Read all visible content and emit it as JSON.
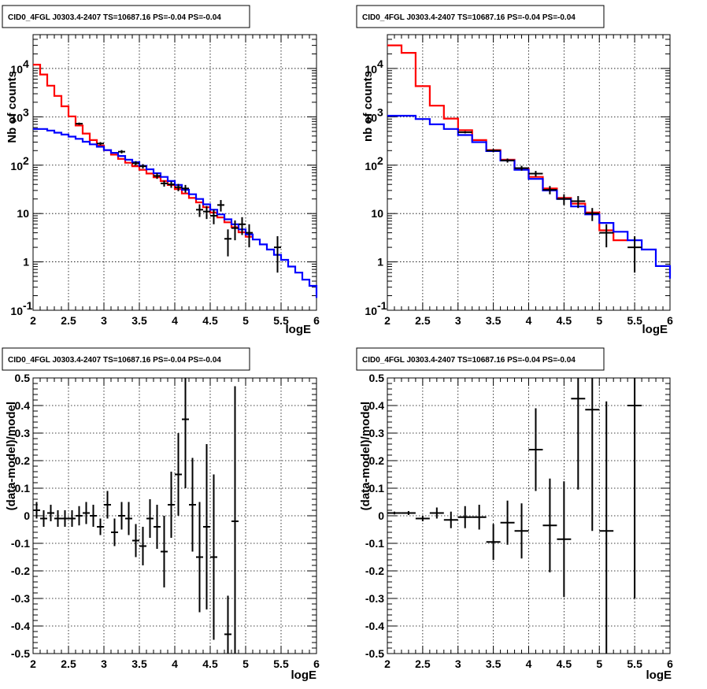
{
  "chart_data": [
    {
      "id": "p1",
      "type": "step-histogram",
      "title": "CID0_4FGL J0303.4-2407 TS=10687.16 PS=-0.04 PS=-0.04",
      "xlabel": "logE",
      "ylabel": "Nb of counts",
      "xlim": [
        2,
        6
      ],
      "ylim": [
        0.1,
        50000
      ],
      "yscale": "log",
      "grid": true,
      "x_ticks": [
        "2",
        "2.5",
        "3",
        "3.5",
        "4",
        "4.5",
        "5",
        "5.5",
        "6"
      ],
      "y_ticks_major": [
        "10^-1",
        "1",
        "10",
        "10^2",
        "10^3",
        "10^4"
      ],
      "bin_edges": [
        2.0,
        2.1,
        2.2,
        2.3,
        2.4,
        2.5,
        2.6,
        2.7,
        2.8,
        2.9,
        3.0,
        3.1,
        3.2,
        3.3,
        3.4,
        3.5,
        3.6,
        3.7,
        3.8,
        3.9,
        4.0,
        4.1,
        4.2,
        4.3,
        4.4,
        4.5,
        4.6,
        4.7,
        4.8,
        4.9,
        5.0,
        5.1,
        5.2,
        5.3,
        5.4,
        5.5,
        5.6,
        5.7,
        5.8,
        5.9,
        6.0
      ],
      "series": [
        {
          "color": "#ff0000",
          "values": [
            12000,
            7500,
            4400,
            2700,
            1650,
            1020,
            660,
            450,
            330,
            255,
            205,
            165,
            135,
            112,
            95,
            80,
            67,
            56,
            47,
            39,
            32,
            26,
            21,
            17,
            13.5,
            10.5,
            8.3,
            6.6,
            5.2,
            4.1,
            3.3
          ]
        },
        {
          "color": "#0000ff",
          "values": [
            560,
            560,
            520,
            470,
            430,
            390,
            350,
            305,
            270,
            240,
            205,
            180,
            155,
            130,
            115,
            97,
            82,
            68,
            57,
            47,
            39,
            31,
            25,
            20,
            15.5,
            12,
            9.6,
            7.6,
            6,
            4.7,
            3.7,
            2.9,
            2.3,
            1.8,
            1.4,
            1.1,
            0.8,
            0.6,
            0.43,
            0.32,
            0.18
          ]
        }
      ],
      "points": [
        {
          "x": 2.65,
          "y": 720,
          "lo": 680,
          "hi": 760
        },
        {
          "x": 2.95,
          "y": 280,
          "lo": 260,
          "hi": 300
        },
        {
          "x": 3.25,
          "y": 190,
          "lo": 175,
          "hi": 205
        },
        {
          "x": 3.45,
          "y": 110,
          "lo": 99,
          "hi": 121
        },
        {
          "x": 3.55,
          "y": 95,
          "lo": 85,
          "hi": 105
        },
        {
          "x": 3.75,
          "y": 60,
          "lo": 52,
          "hi": 68
        },
        {
          "x": 3.85,
          "y": 42,
          "lo": 36,
          "hi": 48
        },
        {
          "x": 3.95,
          "y": 40,
          "lo": 34,
          "hi": 46
        },
        {
          "x": 4.05,
          "y": 35,
          "lo": 29,
          "hi": 41
        },
        {
          "x": 4.15,
          "y": 33,
          "lo": 27,
          "hi": 39
        },
        {
          "x": 4.35,
          "y": 12,
          "lo": 8.5,
          "hi": 15.5
        },
        {
          "x": 4.45,
          "y": 11,
          "lo": 7.7,
          "hi": 14.3
        },
        {
          "x": 4.55,
          "y": 9,
          "lo": 6,
          "hi": 12
        },
        {
          "x": 4.65,
          "y": 15,
          "lo": 11,
          "hi": 19
        },
        {
          "x": 4.75,
          "y": 3,
          "lo": 1.3,
          "hi": 4.7
        },
        {
          "x": 4.85,
          "y": 5,
          "lo": 2.8,
          "hi": 7.2
        },
        {
          "x": 4.95,
          "y": 6,
          "lo": 3.6,
          "hi": 8.4
        },
        {
          "x": 5.05,
          "y": 4,
          "lo": 2,
          "hi": 6
        },
        {
          "x": 5.45,
          "y": 2,
          "lo": 0.6,
          "hi": 3.4
        }
      ],
      "xerr": 0.05
    },
    {
      "id": "p2",
      "type": "step-histogram",
      "title": "CID0_4FGL J0303.4-2407 TS=10687.16 PS=-0.04 PS=-0.04",
      "xlabel": "logE",
      "ylabel": "nb of counts",
      "xlim": [
        2,
        6
      ],
      "ylim": [
        0.1,
        50000
      ],
      "yscale": "log",
      "grid": true,
      "x_ticks": [
        "2",
        "2.5",
        "3",
        "3.5",
        "4",
        "4.5",
        "5",
        "5.5",
        "6"
      ],
      "y_ticks_major": [
        "10^-1",
        "1",
        "10",
        "10^2",
        "10^3",
        "10^4"
      ],
      "bin_edges": [
        2.0,
        2.2,
        2.4,
        2.6,
        2.8,
        3.0,
        3.2,
        3.4,
        3.6,
        3.8,
        4.0,
        4.2,
        4.4,
        4.6,
        4.8,
        5.0,
        5.2,
        5.4,
        5.6,
        5.8,
        6.0
      ],
      "series": [
        {
          "color": "#ff0000",
          "values": [
            30000,
            21000,
            4300,
            1700,
            920,
            530,
            330,
            205,
            130,
            85,
            57,
            33,
            21,
            16,
            10.5,
            4.5,
            2.8
          ]
        },
        {
          "color": "#0000ff",
          "values": [
            1050,
            1050,
            900,
            700,
            560,
            420,
            300,
            195,
            125,
            80,
            52,
            30,
            20,
            14,
            9.6,
            6.4,
            4.2,
            2.8,
            1.8,
            0.82,
            0.45
          ]
        }
      ],
      "points": [
        {
          "x": 3.1,
          "y": 480,
          "lo": 455,
          "hi": 505
        },
        {
          "x": 3.5,
          "y": 200,
          "lo": 185,
          "hi": 215
        },
        {
          "x": 3.7,
          "y": 125,
          "lo": 113,
          "hi": 137
        },
        {
          "x": 3.9,
          "y": 87,
          "lo": 77,
          "hi": 97
        },
        {
          "x": 4.1,
          "y": 67,
          "lo": 58,
          "hi": 76
        },
        {
          "x": 4.3,
          "y": 31,
          "lo": 25,
          "hi": 37
        },
        {
          "x": 4.5,
          "y": 20,
          "lo": 15,
          "hi": 25
        },
        {
          "x": 4.7,
          "y": 18,
          "lo": 13,
          "hi": 23
        },
        {
          "x": 4.9,
          "y": 10,
          "lo": 7,
          "hi": 13
        },
        {
          "x": 5.1,
          "y": 4,
          "lo": 2,
          "hi": 6
        },
        {
          "x": 5.5,
          "y": 2,
          "lo": 0.6,
          "hi": 3.4
        }
      ],
      "xerr": 0.1
    },
    {
      "id": "p3",
      "type": "scatter",
      "title": "CID0_4FGL J0303.4-2407 TS=10687.16 PS=-0.04 PS=-0.04",
      "xlabel": "logE",
      "ylabel": "(data-model)/model",
      "xlim": [
        2,
        6
      ],
      "ylim": [
        -0.5,
        0.5
      ],
      "yscale": "linear",
      "grid": true,
      "x_ticks": [
        "2",
        "2.5",
        "3",
        "3.5",
        "4",
        "4.5",
        "5",
        "5.5",
        "6"
      ],
      "y_ticks": [
        "-0.5",
        "-0.4",
        "-0.3",
        "-0.2",
        "-0.1",
        "0",
        "0.1",
        "0.2",
        "0.3",
        "0.4",
        "0.5"
      ],
      "xerr": 0.05,
      "points": [
        {
          "x": 2.05,
          "y": 0.02,
          "err": 0.03
        },
        {
          "x": 2.15,
          "y": -0.01,
          "err": 0.03
        },
        {
          "x": 2.25,
          "y": 0.01,
          "err": 0.03
        },
        {
          "x": 2.35,
          "y": -0.01,
          "err": 0.03
        },
        {
          "x": 2.45,
          "y": -0.01,
          "err": 0.03
        },
        {
          "x": 2.55,
          "y": -0.01,
          "err": 0.03
        },
        {
          "x": 2.65,
          "y": 0.0,
          "err": 0.035
        },
        {
          "x": 2.75,
          "y": 0.01,
          "err": 0.04
        },
        {
          "x": 2.85,
          "y": 0.0,
          "err": 0.04
        },
        {
          "x": 2.95,
          "y": -0.04,
          "err": 0.03
        },
        {
          "x": 3.05,
          "y": 0.04,
          "err": 0.05
        },
        {
          "x": 3.15,
          "y": -0.06,
          "err": 0.05
        },
        {
          "x": 3.25,
          "y": 0.0,
          "err": 0.05
        },
        {
          "x": 3.35,
          "y": -0.01,
          "err": 0.06
        },
        {
          "x": 3.45,
          "y": -0.09,
          "err": 0.06
        },
        {
          "x": 3.55,
          "y": -0.11,
          "err": 0.07
        },
        {
          "x": 3.65,
          "y": -0.01,
          "err": 0.07
        },
        {
          "x": 3.75,
          "y": -0.04,
          "err": 0.08
        },
        {
          "x": 3.85,
          "y": -0.13,
          "err": 0.13
        },
        {
          "x": 3.95,
          "y": 0.04,
          "err": 0.12
        },
        {
          "x": 4.05,
          "y": 0.15,
          "err": 0.15
        },
        {
          "x": 4.15,
          "y": 0.35,
          "err": 0.25
        },
        {
          "x": 4.25,
          "y": 0.04,
          "err": 0.17
        },
        {
          "x": 4.35,
          "y": -0.15,
          "err": 0.2
        },
        {
          "x": 4.45,
          "y": -0.04,
          "err": 0.3
        },
        {
          "x": 4.55,
          "y": -0.15,
          "err": 0.3
        },
        {
          "x": 4.75,
          "y": -0.43,
          "err": 0.14
        },
        {
          "x": 4.85,
          "y": -0.02,
          "err": 0.49
        }
      ]
    },
    {
      "id": "p4",
      "type": "scatter",
      "title": "CID0_4FGL J0303.4-2407 TS=10687.16 PS=-0.04 PS=-0.04",
      "xlabel": "logE",
      "ylabel": "(data-model)/model",
      "xlim": [
        2,
        6
      ],
      "ylim": [
        -0.5,
        0.5
      ],
      "yscale": "linear",
      "grid": true,
      "x_ticks": [
        "2",
        "2.5",
        "3",
        "3.5",
        "4",
        "4.5",
        "5",
        "5.5",
        "6"
      ],
      "y_ticks": [
        "-0.5",
        "-0.4",
        "-0.3",
        "-0.2",
        "-0.1",
        "0",
        "0.1",
        "0.2",
        "0.3",
        "0.4",
        "0.5"
      ],
      "xerr": 0.1,
      "points": [
        {
          "x": 2.1,
          "y": 0.01,
          "err": 0.005
        },
        {
          "x": 2.3,
          "y": 0.01,
          "err": 0.007
        },
        {
          "x": 2.5,
          "y": -0.01,
          "err": 0.01
        },
        {
          "x": 2.7,
          "y": 0.01,
          "err": 0.02
        },
        {
          "x": 2.9,
          "y": -0.015,
          "err": 0.03
        },
        {
          "x": 3.1,
          "y": -0.005,
          "err": 0.04
        },
        {
          "x": 3.3,
          "y": -0.005,
          "err": 0.045
        },
        {
          "x": 3.5,
          "y": -0.095,
          "err": 0.065
        },
        {
          "x": 3.7,
          "y": -0.025,
          "err": 0.08
        },
        {
          "x": 3.9,
          "y": -0.055,
          "err": 0.1
        },
        {
          "x": 4.1,
          "y": 0.24,
          "err": 0.15
        },
        {
          "x": 4.3,
          "y": -0.035,
          "err": 0.17
        },
        {
          "x": 4.5,
          "y": -0.085,
          "err": 0.21
        },
        {
          "x": 4.7,
          "y": 0.425,
          "err": 0.33
        },
        {
          "x": 4.9,
          "y": 0.385,
          "err": 0.44
        },
        {
          "x": 5.1,
          "y": -0.055,
          "err": 0.47
        },
        {
          "x": 5.5,
          "y": 0.4,
          "err": 0.7
        }
      ]
    }
  ]
}
